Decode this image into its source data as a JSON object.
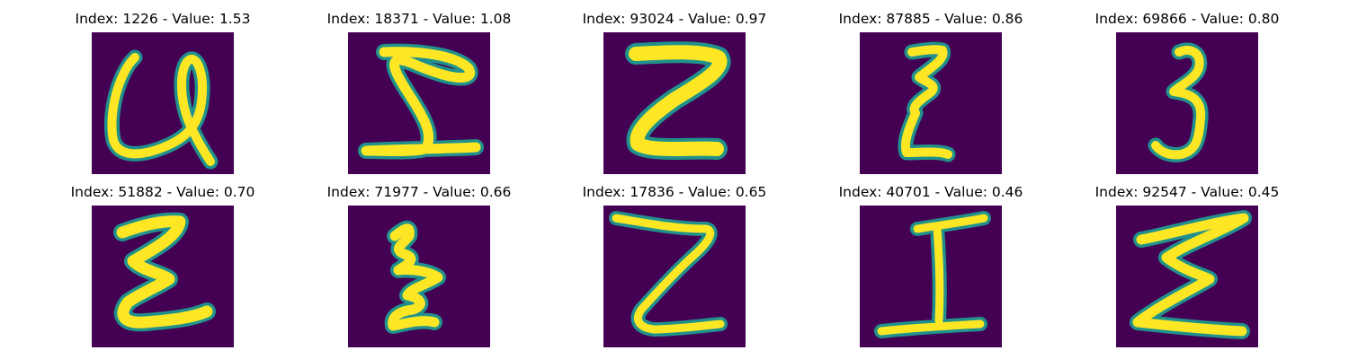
{
  "colors": {
    "background": "#440154",
    "stroke_edge": "#21918c",
    "stroke_core": "#fde725"
  },
  "panels": [
    {
      "title": "Index: 1226 - Value: 1.53",
      "glyph": "U-with-loop"
    },
    {
      "title": "Index: 18371 - Value: 1.08",
      "glyph": "sigma-like"
    },
    {
      "title": "Index: 93024 - Value: 0.97",
      "glyph": "Z"
    },
    {
      "title": "Index: 87885 - Value: 0.86",
      "glyph": "xi-like"
    },
    {
      "title": "Index: 69866 - Value: 0.80",
      "glyph": "3"
    },
    {
      "title": "Index: 51882 - Value: 0.70",
      "glyph": "xi-like"
    },
    {
      "title": "Index: 71977 - Value: 0.66",
      "glyph": "xi-like"
    },
    {
      "title": "Index: 17836 - Value: 0.65",
      "glyph": "Z"
    },
    {
      "title": "Index: 40701 - Value: 0.46",
      "glyph": "I"
    },
    {
      "title": "Index: 92547 - Value: 0.45",
      "glyph": "sigma-like"
    }
  ]
}
